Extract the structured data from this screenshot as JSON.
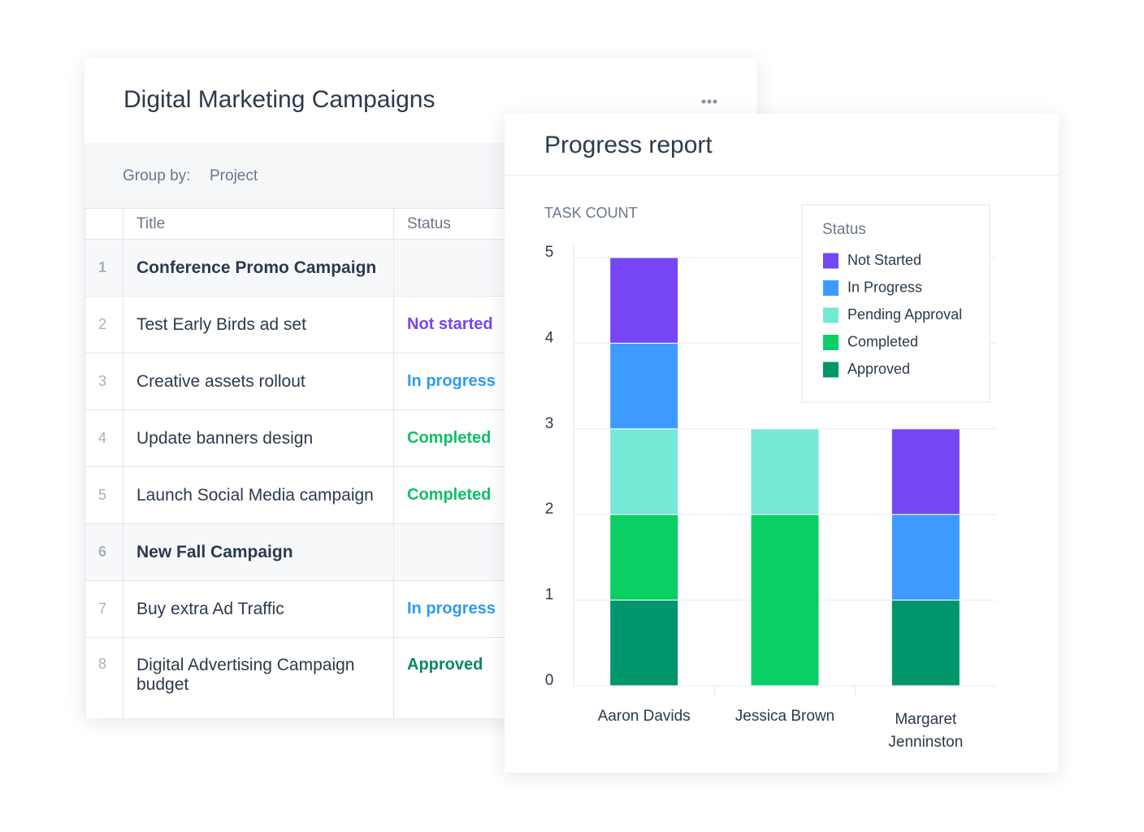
{
  "table": {
    "title": "Digital Marketing Campaigns",
    "group_by_label": "Group by:",
    "group_by_value": "Project",
    "columns": [
      "Title",
      "Status"
    ],
    "groups": [
      {
        "number": 1,
        "title": "Conference Promo Campaign",
        "tasks": [
          {
            "number": 2,
            "title": "Test Early Birds ad set",
            "status": "Not started",
            "status_color": "#7646f5"
          },
          {
            "number": 3,
            "title": "Creative assets rollout",
            "status": "In progress",
            "status_color": "#2d9cf0"
          },
          {
            "number": 4,
            "title": "Update banners design",
            "status": "Completed",
            "status_color": "#0fbf68"
          },
          {
            "number": 5,
            "title": "Launch Social Media campaign",
            "status": "Completed",
            "status_color": "#0fbf68"
          }
        ]
      },
      {
        "number": 6,
        "title": "New Fall Campaign",
        "tasks": [
          {
            "number": 7,
            "title": "Buy extra Ad Traffic",
            "status": "In progress",
            "status_color": "#2d9cf0"
          },
          {
            "number": 8,
            "title": "Digital Advertising Campaign budget",
            "status": "Approved",
            "status_color": "#078a5c"
          }
        ]
      }
    ]
  },
  "chart_data": {
    "type": "stacked_bar",
    "title": "Progress report",
    "y_label": "TASK COUNT",
    "legend_title": "Status",
    "legend_position": "top-right",
    "grid": true,
    "categories": [
      "Aaron Davids",
      "Jessica Brown",
      "Margaret Jenninston"
    ],
    "series": [
      {
        "name": "Not Started",
        "color": "#7646f5",
        "values": [
          1,
          0,
          1
        ]
      },
      {
        "name": "In Progress",
        "color": "#3d9bff",
        "values": [
          1,
          0,
          1
        ]
      },
      {
        "name": "Pending Approval",
        "color": "#76e8d6",
        "values": [
          1,
          1,
          0
        ]
      },
      {
        "name": "Completed",
        "color": "#0acf65",
        "values": [
          1,
          2,
          0
        ]
      },
      {
        "name": "Approved",
        "color": "#00956a",
        "values": [
          1,
          0,
          1
        ]
      }
    ],
    "ylim": [
      0,
      5
    ],
    "yticks": [
      0,
      1,
      2,
      3,
      4,
      5
    ]
  }
}
